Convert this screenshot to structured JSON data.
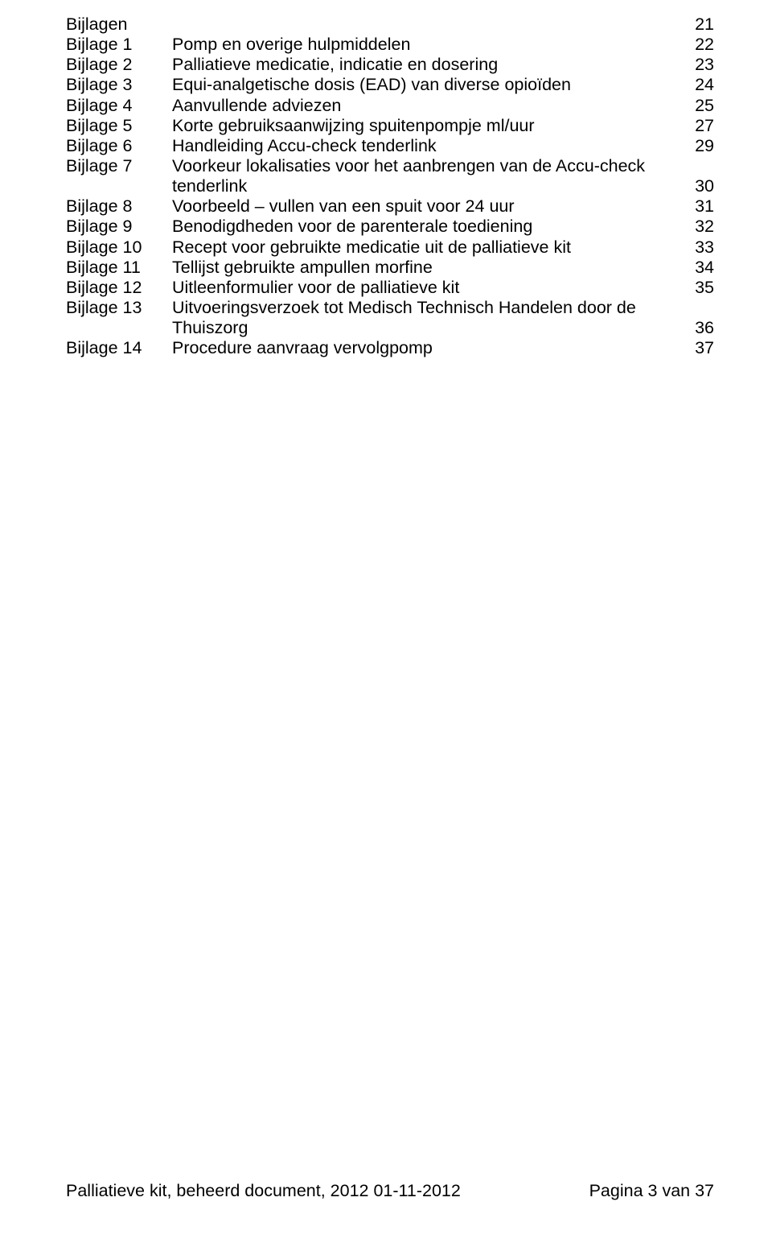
{
  "font": {
    "family": "Arial",
    "size_pt": 16,
    "color": "#000000"
  },
  "background_color": "#ffffff",
  "heading": {
    "label": "Bijlagen",
    "page": "21"
  },
  "entries": [
    {
      "label": "Bijlage 1",
      "desc": "Pomp en overige hulpmiddelen",
      "page": "22"
    },
    {
      "label": "Bijlage 2",
      "desc": "Palliatieve medicatie, indicatie en dosering",
      "page": "23"
    },
    {
      "label": "Bijlage 3",
      "desc": "Equi-analgetische dosis (EAD) van diverse opioïden",
      "page": "24"
    },
    {
      "label": "Bijlage 4",
      "desc_line1": "Aanvullende adviezen",
      "page": "25"
    },
    {
      "label": "Bijlage 5",
      "desc": "Korte gebruiksaanwijzing spuitenpompje ml/uur",
      "page": "27"
    },
    {
      "label": "Bijlage 6",
      "desc": "Handleiding Accu-check tenderlink",
      "page": "29"
    },
    {
      "label": "Bijlage 7",
      "desc_line1": "Voorkeur lokalisaties voor het aanbrengen van de Accu-check",
      "desc_line2": "tenderlink",
      "page": "30"
    },
    {
      "label": "Bijlage 8",
      "desc": "Voorbeeld – vullen van een spuit voor 24 uur",
      "page": "31"
    },
    {
      "label": "Bijlage 9",
      "desc": "Benodigdheden voor de parenterale toediening",
      "page": "32"
    },
    {
      "label": "Bijlage 10",
      "desc": "Recept voor gebruikte medicatie uit de palliatieve kit",
      "page": "33"
    },
    {
      "label": "Bijlage 11",
      "desc": "Tellijst gebruikte ampullen morfine",
      "page": "34"
    },
    {
      "label": "Bijlage 12",
      "desc": " Uitleenformulier voor de palliatieve kit",
      "page": "35"
    },
    {
      "label": "Bijlage 13",
      "desc_line1": "Uitvoeringsverzoek tot Medisch Technisch Handelen door de",
      "desc_line2": "Thuiszorg",
      "page": "36"
    },
    {
      "label": "Bijlage 14",
      "desc": "Procedure aanvraag vervolgpomp",
      "page": "37"
    }
  ],
  "footer": {
    "left": "Palliatieve kit, beheerd document, 2012    01-11-2012",
    "right": "Pagina 3 van 37"
  }
}
